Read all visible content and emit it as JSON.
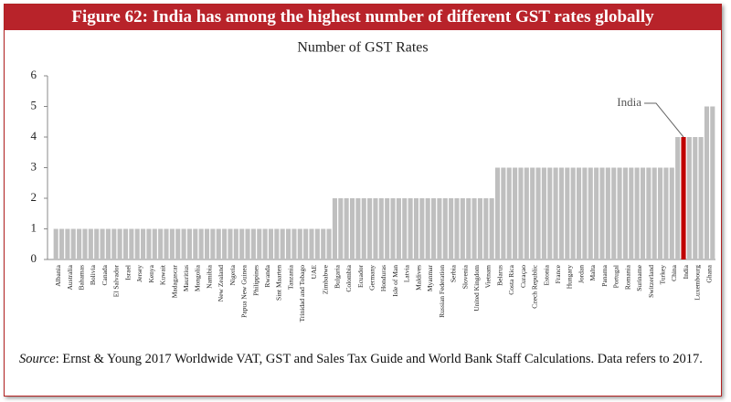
{
  "chart_data": {
    "type": "bar",
    "title": "Figure 62: India has among the highest number of different GST rates globally",
    "subtitle": "Number of GST Rates",
    "source_label": "Source",
    "source_text": ": Ernst & Young 2017 Worldwide VAT, GST and Sales Tax Guide and World Bank Staff Calculations. Data refers to 2017.",
    "annotation": "India",
    "categories": [
      "Albania",
      null,
      "Australia",
      null,
      "Bahamas",
      null,
      "Bolivia",
      null,
      "Canada",
      null,
      "El Salvador",
      null,
      "Israel",
      null,
      "Jersey",
      null,
      "Kenya",
      null,
      "Kuwait",
      null,
      "Madagascar",
      null,
      "Mauritius",
      null,
      "Mongolia",
      null,
      "Namibia",
      null,
      "New Zealand",
      null,
      "Nigeria",
      null,
      "Papua New Guinea",
      null,
      "Philippines",
      null,
      "Rwanda",
      null,
      "Sint Maarten",
      null,
      "Tanzania",
      null,
      "Trinidad and Tobago",
      null,
      "UAE",
      null,
      "Zimbabwe",
      null,
      "Bulgaria",
      null,
      "Colombia",
      null,
      "Ecuador",
      null,
      "Germany",
      null,
      "Honduras",
      null,
      "Isle of Man",
      null,
      "Latvia",
      null,
      "Maldives",
      null,
      "Myanmar",
      null,
      "Russian Federation",
      null,
      "Serbia",
      null,
      "Slovenia",
      null,
      "United Kingdom",
      null,
      "Vietnam",
      null,
      "Belarus",
      null,
      "Costa Rica",
      null,
      "Curaçao",
      null,
      "Czech Republic",
      null,
      "Estonia",
      null,
      "France",
      null,
      "Hungary",
      null,
      "Jordan",
      null,
      "Malta",
      null,
      "Panama",
      null,
      "Portugal",
      null,
      "Romania",
      null,
      "Suriname",
      null,
      "Switzerland",
      null,
      "Turkey",
      null,
      "China",
      null,
      "India",
      null,
      "Luxembourg",
      null,
      "Ghana",
      null
    ],
    "values": [
      1,
      1,
      1,
      1,
      1,
      1,
      1,
      1,
      1,
      1,
      1,
      1,
      1,
      1,
      1,
      1,
      1,
      1,
      1,
      1,
      1,
      1,
      1,
      1,
      1,
      1,
      1,
      1,
      1,
      1,
      1,
      1,
      1,
      1,
      1,
      1,
      1,
      1,
      1,
      1,
      1,
      1,
      1,
      1,
      1,
      1,
      1,
      1,
      2,
      2,
      2,
      2,
      2,
      2,
      2,
      2,
      2,
      2,
      2,
      2,
      2,
      2,
      2,
      2,
      2,
      2,
      2,
      2,
      2,
      2,
      2,
      2,
      2,
      2,
      2,
      2,
      3,
      3,
      3,
      3,
      3,
      3,
      3,
      3,
      3,
      3,
      3,
      3,
      3,
      3,
      3,
      3,
      3,
      3,
      3,
      3,
      3,
      3,
      3,
      3,
      3,
      3,
      3,
      3,
      3,
      3,
      3,
      4,
      4,
      4,
      4,
      4,
      5,
      5
    ],
    "colors": [
      "#bfbfbf",
      "#bfbfbf",
      "#bfbfbf",
      "#bfbfbf",
      "#bfbfbf",
      "#bfbfbf",
      "#bfbfbf",
      "#bfbfbf",
      "#bfbfbf",
      "#bfbfbf",
      "#bfbfbf",
      "#bfbfbf",
      "#bfbfbf",
      "#bfbfbf",
      "#bfbfbf",
      "#bfbfbf",
      "#bfbfbf",
      "#bfbfbf",
      "#bfbfbf",
      "#bfbfbf",
      "#bfbfbf",
      "#bfbfbf",
      "#bfbfbf",
      "#bfbfbf",
      "#bfbfbf",
      "#bfbfbf",
      "#bfbfbf",
      "#bfbfbf",
      "#bfbfbf",
      "#bfbfbf",
      "#bfbfbf",
      "#bfbfbf",
      "#bfbfbf",
      "#bfbfbf",
      "#bfbfbf",
      "#bfbfbf",
      "#bfbfbf",
      "#bfbfbf",
      "#bfbfbf",
      "#bfbfbf",
      "#bfbfbf",
      "#bfbfbf",
      "#bfbfbf",
      "#bfbfbf",
      "#bfbfbf",
      "#bfbfbf",
      "#bfbfbf",
      "#bfbfbf",
      "#bfbfbf",
      "#bfbfbf",
      "#bfbfbf",
      "#bfbfbf",
      "#bfbfbf",
      "#bfbfbf",
      "#bfbfbf",
      "#bfbfbf",
      "#bfbfbf",
      "#bfbfbf",
      "#bfbfbf",
      "#bfbfbf",
      "#bfbfbf",
      "#bfbfbf",
      "#bfbfbf",
      "#bfbfbf",
      "#bfbfbf",
      "#bfbfbf",
      "#bfbfbf",
      "#bfbfbf",
      "#bfbfbf",
      "#bfbfbf",
      "#bfbfbf",
      "#bfbfbf",
      "#bfbfbf",
      "#bfbfbf",
      "#bfbfbf",
      "#bfbfbf",
      "#bfbfbf",
      "#bfbfbf",
      "#bfbfbf",
      "#bfbfbf",
      "#bfbfbf",
      "#bfbfbf",
      "#bfbfbf",
      "#bfbfbf",
      "#bfbfbf",
      "#bfbfbf",
      "#bfbfbf",
      "#bfbfbf",
      "#bfbfbf",
      "#bfbfbf",
      "#bfbfbf",
      "#bfbfbf",
      "#bfbfbf",
      "#bfbfbf",
      "#bfbfbf",
      "#bfbfbf",
      "#bfbfbf",
      "#bfbfbf",
      "#bfbfbf",
      "#bfbfbf",
      "#bfbfbf",
      "#bfbfbf",
      "#bfbfbf",
      "#bfbfbf",
      "#bfbfbf",
      "#bfbfbf",
      "#bfbfbf",
      "#bfbfbf",
      "#c00000",
      "#bfbfbf",
      "#bfbfbf",
      "#bfbfbf",
      "#bfbfbf",
      "#bfbfbf"
    ],
    "ylim": [
      0,
      6
    ],
    "yticks": [
      0,
      1,
      2,
      3,
      4,
      5,
      6
    ],
    "grid": false
  }
}
